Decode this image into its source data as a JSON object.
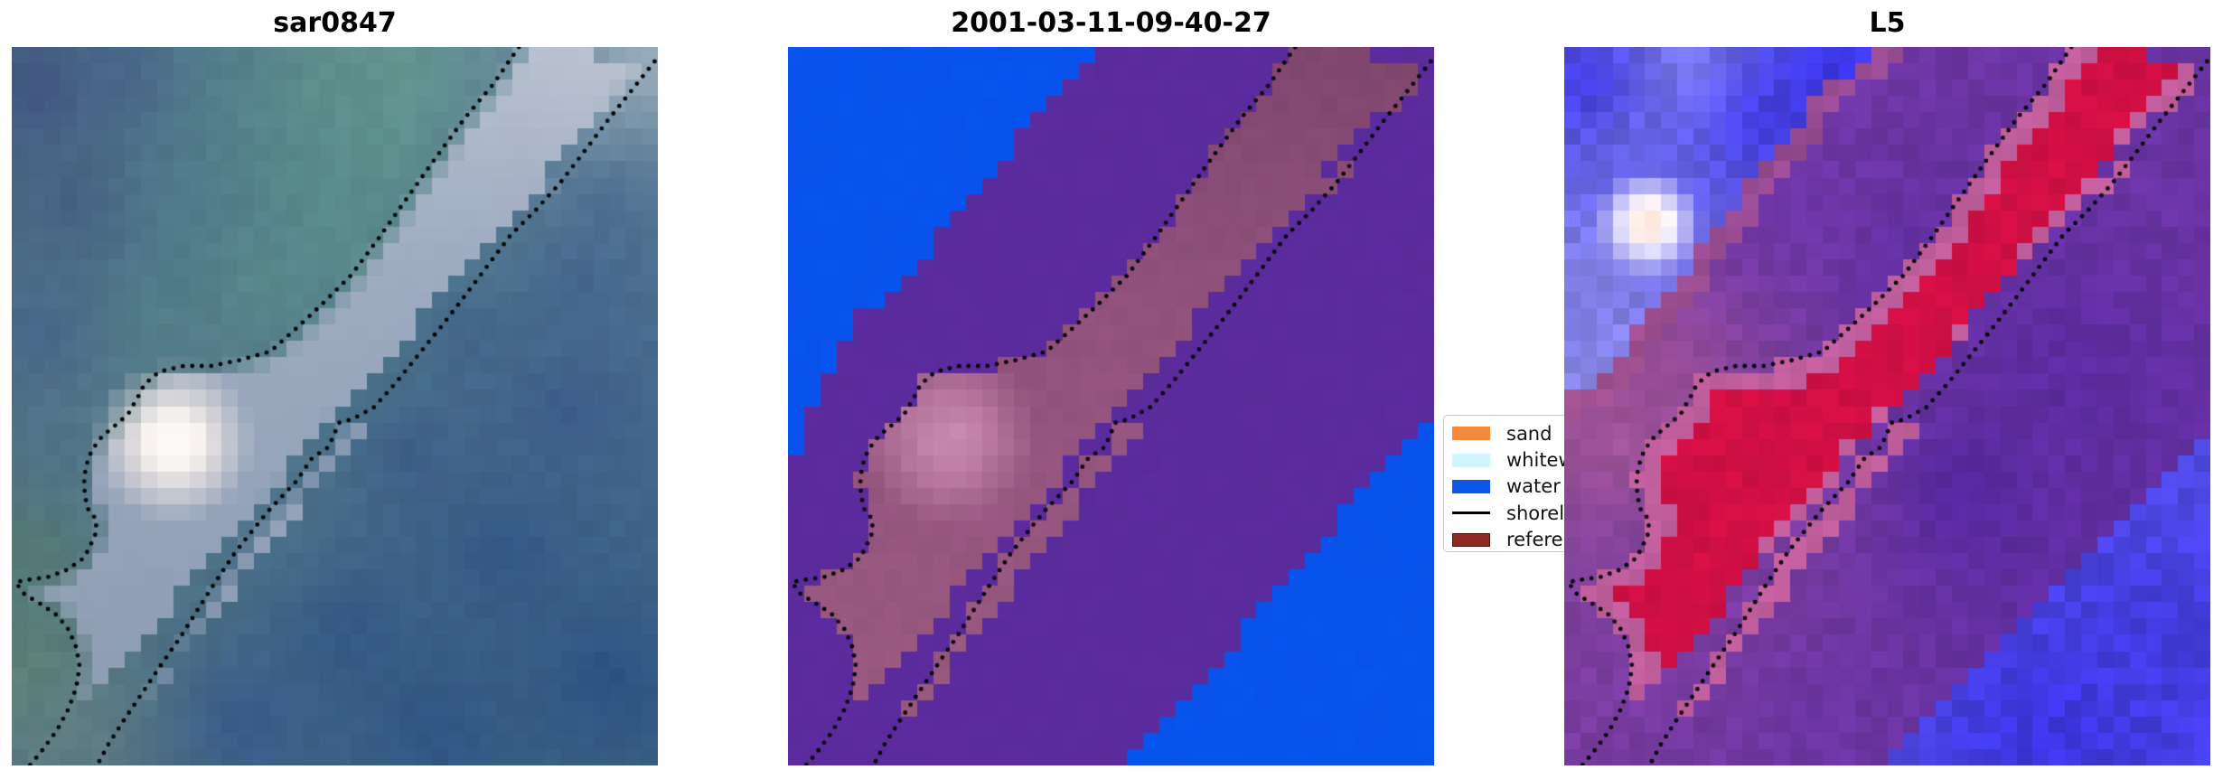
{
  "figure": {
    "background": "#FFFFFF",
    "kind": "three-panel satellite shoreline figure"
  },
  "chart_data": {
    "type": "heatmap",
    "title": "",
    "description": "Three co-registered coastal image chips with two dotted shoreline curves overlaid diagonally and a legend of classes. Panel 1 is an RGB satellite chip, panel 2 a class map (water/land/reference band), panel 3 a probability-style map.",
    "panels": [
      {
        "id": "sar",
        "title": "sar0847",
        "kind": "rgb-satellite",
        "scene": {
          "field_points": [
            [
              0.04,
              0.06,
              "#3C4C7C"
            ],
            [
              0.18,
              0.05,
              "#46618B"
            ],
            [
              0.33,
              0.05,
              "#54808C"
            ],
            [
              0.47,
              0.06,
              "#5E9389"
            ],
            [
              0.6,
              0.03,
              "#689C90"
            ],
            [
              0.1,
              0.22,
              "#41597F"
            ],
            [
              0.28,
              0.22,
              "#4F7C8C"
            ],
            [
              0.45,
              0.18,
              "#579089"
            ],
            [
              0.58,
              0.13,
              "#619A8D"
            ],
            [
              0.05,
              0.4,
              "#44618A"
            ],
            [
              0.22,
              0.38,
              "#527F88"
            ],
            [
              0.4,
              0.33,
              "#5B8F8A"
            ],
            [
              0.52,
              0.27,
              "#5E948B"
            ],
            [
              0.08,
              0.56,
              "#4E6F88"
            ],
            [
              0.18,
              0.56,
              "#5E838E"
            ],
            [
              0.3,
              0.52,
              "#6A8B96"
            ],
            [
              0.03,
              0.7,
              "#54796E"
            ],
            [
              0.02,
              0.86,
              "#5E8573"
            ],
            [
              0.1,
              0.95,
              "#647F85"
            ],
            [
              0.88,
              0.07,
              "#8CA2B6"
            ],
            [
              0.98,
              0.03,
              "#A7B6C3"
            ],
            [
              0.78,
              0.17,
              "#53738F"
            ],
            [
              0.92,
              0.22,
              "#47688E"
            ],
            [
              0.88,
              0.33,
              "#3E608C"
            ],
            [
              0.7,
              0.4,
              "#3E6089"
            ],
            [
              0.86,
              0.5,
              "#38588A"
            ],
            [
              0.62,
              0.57,
              "#3A5A87"
            ],
            [
              0.76,
              0.7,
              "#2F5384"
            ],
            [
              0.52,
              0.82,
              "#2F5484"
            ],
            [
              0.92,
              0.88,
              "#2A5081"
            ],
            [
              0.36,
              0.94,
              "#35578B"
            ],
            [
              0.65,
              0.95,
              "#2C5282"
            ]
          ],
          "noise": 0.03,
          "band": {
            "top": "#C2C8D6",
            "mid": "#A9B2C8",
            "bottom": "#92A0B8",
            "alpha": 0.88,
            "feather": 0.025
          },
          "blob": {
            "c": [
              0.25,
              0.55
            ],
            "r": 0.125,
            "inner": "#FFFEFD",
            "mid": "#F3EBE6"
          }
        }
      },
      {
        "id": "classmap",
        "title": "2001-03-11-09-40-27",
        "kind": "class-map",
        "scene": {
          "land": "#5B2B9D",
          "water": "#0853EC",
          "noise_land": 0.012,
          "noise_water": 0.008,
          "noise_band": 0.02,
          "nw": [
            [
              0,
              0
            ],
            [
              0.48,
              0
            ],
            [
              0.44,
              0.04
            ],
            [
              0.36,
              0.125
            ],
            [
              0.28,
              0.21
            ],
            [
              0.21,
              0.29
            ],
            [
              0.155,
              0.345
            ],
            [
              0.107,
              0.377
            ],
            [
              0.062,
              0.45
            ],
            [
              0.032,
              0.52
            ],
            [
              0,
              0.6
            ]
          ],
          "se": [
            [
              1,
              0.505
            ],
            [
              0.92,
              0.585
            ],
            [
              0.86,
              0.65
            ],
            [
              0.8,
              0.715
            ],
            [
              0.735,
              0.78
            ],
            [
              0.665,
              0.855
            ],
            [
              0.6,
              0.92
            ],
            [
              0.525,
              1
            ],
            [
              1,
              1
            ]
          ],
          "band": {
            "top": "#7F466D",
            "mid": "#91527C",
            "bottom": "#9A5A80"
          },
          "blob": {
            "c": [
              0.25,
              0.545
            ],
            "r": 0.135,
            "inner": "#C787AE"
          }
        }
      },
      {
        "id": "l5",
        "title": "L5",
        "kind": "probability-map",
        "scene": {
          "land_points": [
            [
              0.35,
              0.22,
              "#6C35A8"
            ],
            [
              0.55,
              0.33,
              "#5E2DA2"
            ],
            [
              0.78,
              0.45,
              "#5C2BA2"
            ],
            [
              0.62,
              0.62,
              "#5226A0"
            ],
            [
              0.82,
              0.82,
              "#5E2CA4"
            ],
            [
              0.32,
              0.58,
              "#7C40A6"
            ],
            [
              0.16,
              0.47,
              "#9A4E92"
            ],
            [
              0.08,
              0.54,
              "#A8589A"
            ],
            [
              0.24,
              0.78,
              "#7A3BA0"
            ],
            [
              0.4,
              0.92,
              "#6A34A2"
            ],
            [
              0.95,
              0.18,
              "#6A34A4"
            ],
            [
              0.88,
              0.95,
              "#5C2BA0"
            ]
          ],
          "noise_land": 0.07,
          "water_points": [
            [
              0.19,
              0.03,
              "#8886EE"
            ],
            [
              0.1,
              0.13,
              "#6D6BE8"
            ],
            [
              0.045,
              0.315,
              "#8A88EE"
            ],
            [
              0.2,
              0.38,
              "#7B77E8"
            ],
            [
              0.14,
              0.5,
              "#ABA9F0"
            ],
            [
              0.04,
              0.06,
              "#3730E4"
            ],
            [
              0.3,
              0.1,
              "#3A33E6"
            ],
            [
              0.42,
              0.05,
              "#332CE4"
            ],
            [
              0.9,
              0.85,
              "#423BE0"
            ],
            [
              0.75,
              0.95,
              "#3B34E2"
            ]
          ],
          "noise_water": 0.1,
          "nw": [
            [
              0,
              0
            ],
            [
              0.48,
              0
            ],
            [
              0.4,
              0.065
            ],
            [
              0.32,
              0.15
            ],
            [
              0.24,
              0.245
            ],
            [
              0.17,
              0.33
            ],
            [
              0.1,
              0.41
            ],
            [
              0.05,
              0.46
            ],
            [
              0,
              0.495
            ]
          ],
          "se": [
            [
              1,
              0.545
            ],
            [
              0.87,
              0.655
            ],
            [
              0.735,
              0.775
            ],
            [
              0.62,
              0.875
            ],
            [
              0.5,
              1
            ],
            [
              1,
              1
            ]
          ],
          "band": {
            "core": "#D00F44",
            "fringe": "#C05E9C",
            "fringe_width": 0.035,
            "noise": 0.05
          },
          "nw_strip": {
            "color": "#A3518E",
            "width": 0.035
          },
          "spot": {
            "c": [
              0.13,
              0.245
            ],
            "r": 0.085,
            "inner": "#FFE2D4",
            "mid": "#FDFBFE"
          }
        }
      }
    ],
    "shorelines": {
      "color": "#050505",
      "dot_radius": 2.4,
      "dot_spacing": 10.5,
      "lineA": [
        [
          0.785,
          0.0
        ],
        [
          0.745,
          0.052
        ],
        [
          0.702,
          0.098
        ],
        [
          0.658,
          0.152
        ],
        [
          0.616,
          0.205
        ],
        [
          0.568,
          0.266
        ],
        [
          0.525,
          0.318
        ],
        [
          0.478,
          0.36
        ],
        [
          0.44,
          0.392
        ],
        [
          0.4,
          0.424
        ],
        [
          0.352,
          0.436
        ],
        [
          0.308,
          0.444
        ],
        [
          0.266,
          0.444
        ],
        [
          0.228,
          0.452
        ],
        [
          0.205,
          0.47
        ],
        [
          0.196,
          0.486
        ],
        [
          0.18,
          0.511
        ],
        [
          0.161,
          0.526
        ],
        [
          0.14,
          0.542
        ],
        [
          0.124,
          0.561
        ],
        [
          0.117,
          0.578
        ],
        [
          0.112,
          0.598
        ],
        [
          0.113,
          0.624
        ],
        [
          0.118,
          0.643
        ],
        [
          0.131,
          0.658
        ],
        [
          0.13,
          0.677
        ],
        [
          0.122,
          0.693
        ],
        [
          0.112,
          0.711
        ],
        [
          0.085,
          0.728
        ],
        [
          0.055,
          0.738
        ],
        [
          0.022,
          0.742
        ],
        [
          0.006,
          0.745
        ],
        [
          0.02,
          0.762
        ],
        [
          0.046,
          0.776
        ],
        [
          0.07,
          0.791
        ],
        [
          0.088,
          0.811
        ],
        [
          0.1,
          0.836
        ],
        [
          0.105,
          0.862
        ],
        [
          0.1,
          0.891
        ],
        [
          0.088,
          0.921
        ],
        [
          0.07,
          0.951
        ],
        [
          0.048,
          0.978
        ],
        [
          0.028,
          1.0
        ]
      ],
      "lineB": [
        [
          0.995,
          0.02
        ],
        [
          0.958,
          0.062
        ],
        [
          0.92,
          0.105
        ],
        [
          0.884,
          0.148
        ],
        [
          0.848,
          0.19
        ],
        [
          0.81,
          0.228
        ],
        [
          0.772,
          0.262
        ],
        [
          0.736,
          0.305
        ],
        [
          0.7,
          0.348
        ],
        [
          0.664,
          0.39
        ],
        [
          0.628,
          0.43
        ],
        [
          0.594,
          0.468
        ],
        [
          0.56,
          0.502
        ],
        [
          0.527,
          0.518
        ],
        [
          0.507,
          0.523
        ],
        [
          0.49,
          0.557
        ],
        [
          0.465,
          0.572
        ],
        [
          0.44,
          0.605
        ],
        [
          0.42,
          0.624
        ],
        [
          0.4,
          0.643
        ],
        [
          0.386,
          0.658
        ],
        [
          0.362,
          0.685
        ],
        [
          0.344,
          0.706
        ],
        [
          0.315,
          0.745
        ],
        [
          0.29,
          0.78
        ],
        [
          0.262,
          0.82
        ],
        [
          0.235,
          0.855
        ],
        [
          0.205,
          0.895
        ],
        [
          0.175,
          0.935
        ],
        [
          0.15,
          0.97
        ],
        [
          0.132,
          1.0
        ]
      ]
    },
    "legend": {
      "items": [
        {
          "label": "sand",
          "swatch": "patch",
          "color": "#F5883C"
        },
        {
          "label": "whitew",
          "swatch": "patch",
          "color": "#CFF5FD"
        },
        {
          "label": "water",
          "swatch": "patch",
          "color": "#0A57E8"
        },
        {
          "label": "shoreli",
          "swatch": "line",
          "color": "#000000"
        },
        {
          "label": "referen",
          "swatch": "patch",
          "color": "#8E2A23",
          "border": "#47120D"
        }
      ]
    }
  }
}
